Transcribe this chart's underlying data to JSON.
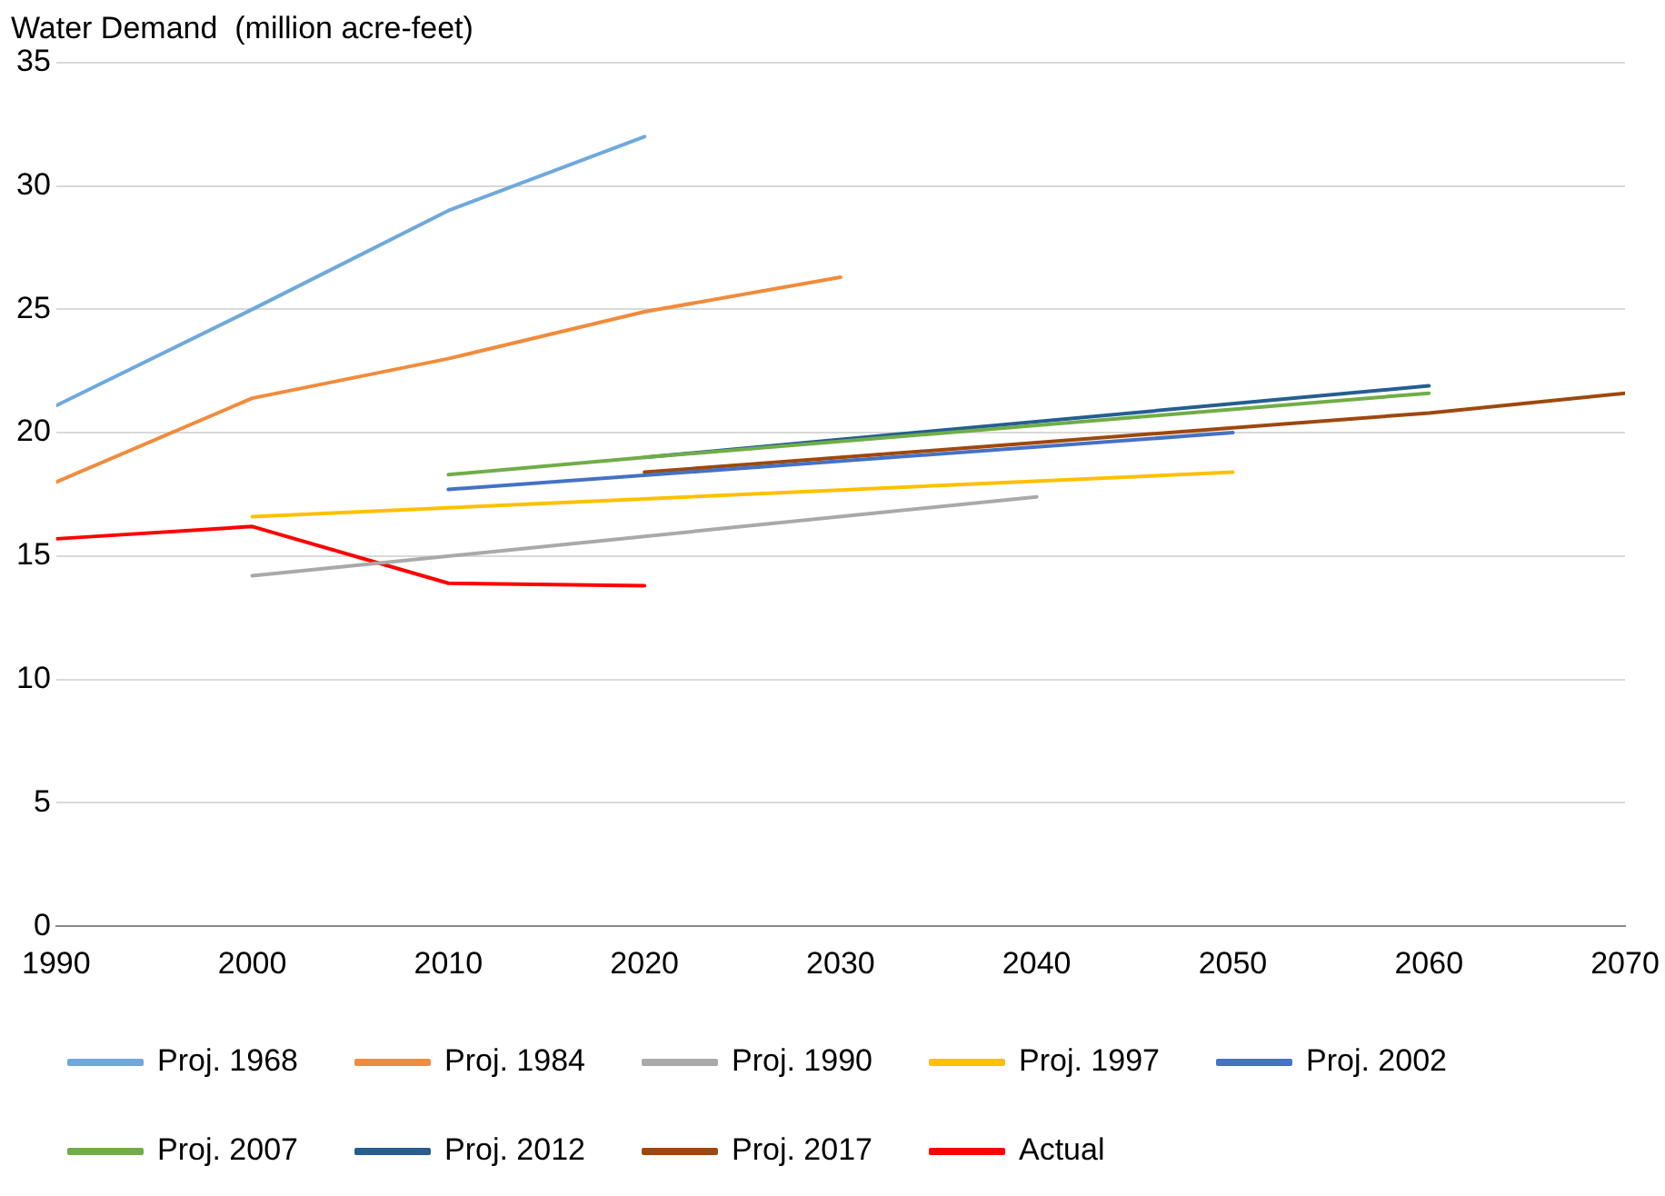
{
  "chart_data": {
    "type": "line",
    "ylabel": "Water Demand  (million acre-feet)",
    "xlim": [
      1990,
      2070
    ],
    "xticks": [
      1990,
      2000,
      2010,
      2020,
      2030,
      2040,
      2050,
      2060,
      2070
    ],
    "ylim": [
      0,
      35
    ],
    "yticks": [
      0,
      5,
      10,
      15,
      20,
      25,
      30,
      35
    ],
    "grid": "y",
    "legend": "bottom",
    "marker": "none",
    "line_style": "solid",
    "series": [
      {
        "name": "Proj. 1968",
        "color": "#6fa8dc",
        "x": [
          1990,
          2000,
          2010,
          2020
        ],
        "values": [
          21.1,
          25.0,
          29.0,
          32.0
        ]
      },
      {
        "name": "Proj. 1984",
        "color": "#f08c3c",
        "x": [
          1990,
          2000,
          2010,
          2020,
          2030
        ],
        "values": [
          18.0,
          21.4,
          23.0,
          24.9,
          26.3
        ]
      },
      {
        "name": "Proj. 1990",
        "color": "#a9a9a9",
        "x": [
          2000,
          2040
        ],
        "values": [
          14.2,
          17.4
        ]
      },
      {
        "name": "Proj. 1997",
        "color": "#ffc000",
        "x": [
          2000,
          2050
        ],
        "values": [
          16.6,
          18.4
        ]
      },
      {
        "name": "Proj. 2002",
        "color": "#4472c4",
        "x": [
          2010,
          2050
        ],
        "values": [
          17.7,
          20.0
        ]
      },
      {
        "name": "Proj. 2007",
        "color": "#70ad47",
        "x": [
          2010,
          2020,
          2060
        ],
        "values": [
          18.3,
          19.0,
          21.6
        ]
      },
      {
        "name": "Proj. 2012",
        "color": "#255e91",
        "x": [
          2020,
          2060
        ],
        "values": [
          19.0,
          21.9
        ]
      },
      {
        "name": "Proj. 2017",
        "color": "#9e480e",
        "x": [
          2020,
          2060,
          2070
        ],
        "values": [
          18.4,
          20.8,
          21.6
        ]
      },
      {
        "name": "Actual",
        "color": "#ff0000",
        "x": [
          1990,
          2000,
          2010,
          2020
        ],
        "values": [
          15.7,
          16.2,
          13.9,
          13.8
        ]
      }
    ]
  }
}
